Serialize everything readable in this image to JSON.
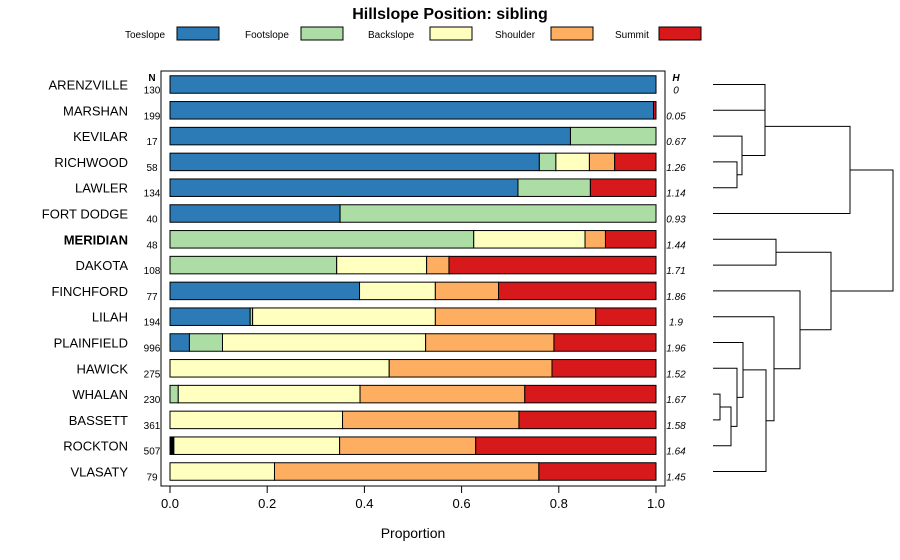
{
  "chart_data": {
    "type": "bar",
    "orientation": "horizontal",
    "stacked": true,
    "title": "Hillslope Position: sibling",
    "xlabel": "Proportion",
    "xlim": [
      0,
      1
    ],
    "xticks": [
      "0.0",
      "0.2",
      "0.4",
      "0.6",
      "0.8",
      "1.0"
    ],
    "n_header": "N",
    "h_header": "H",
    "legend": [
      {
        "name": "Toeslope",
        "color": "#2c7bb6"
      },
      {
        "name": "Footslope",
        "color": "#abdda4"
      },
      {
        "name": "Backslope",
        "color": "#ffffbf"
      },
      {
        "name": "Shoulder",
        "color": "#fdae61"
      },
      {
        "name": "Summit",
        "color": "#d7191c"
      }
    ],
    "rows": [
      {
        "label": "ARENZVILLE",
        "n": "130",
        "h": "0",
        "bold": false,
        "lead": 0,
        "values": [
          1.0,
          0,
          0,
          0,
          0
        ]
      },
      {
        "label": "MARSHAN",
        "n": "199",
        "h": "0.05",
        "bold": false,
        "lead": 0,
        "values": [
          0.995,
          0,
          0,
          0,
          0.005
        ]
      },
      {
        "label": "KEVILAR",
        "n": "17",
        "h": "0.67",
        "bold": false,
        "lead": 0,
        "values": [
          0.824,
          0.176,
          0,
          0,
          0
        ]
      },
      {
        "label": "RICHWOOD",
        "n": "58",
        "h": "1.26",
        "bold": false,
        "lead": 0,
        "values": [
          0.76,
          0.034,
          0.069,
          0.052,
          0.085
        ]
      },
      {
        "label": "LAWLER",
        "n": "134",
        "h": "1.14",
        "bold": false,
        "lead": 0,
        "values": [
          0.716,
          0.149,
          0,
          0,
          0.135
        ]
      },
      {
        "label": "FORT DODGE",
        "n": "40",
        "h": "0.93",
        "bold": false,
        "lead": 0,
        "values": [
          0.35,
          0.65,
          0,
          0,
          0
        ]
      },
      {
        "label": "MERIDIAN",
        "n": "48",
        "h": "1.44",
        "bold": true,
        "lead": 0,
        "values": [
          0,
          0.625,
          0.229,
          0.042,
          0.104
        ]
      },
      {
        "label": "DAKOTA",
        "n": "108",
        "h": "1.71",
        "bold": false,
        "lead": 0,
        "values": [
          0,
          0.343,
          0.185,
          0.046,
          0.426
        ]
      },
      {
        "label": "FINCHFORD",
        "n": "77",
        "h": "1.86",
        "bold": false,
        "lead": 0,
        "values": [
          0.39,
          0,
          0.156,
          0.13,
          0.324
        ]
      },
      {
        "label": "LILAH",
        "n": "194",
        "h": "1.9",
        "bold": false,
        "lead": 0,
        "values": [
          0.165,
          0.005,
          0.376,
          0.33,
          0.124
        ]
      },
      {
        "label": "PLAINFIELD",
        "n": "996",
        "h": "1.96",
        "bold": false,
        "lead": 0,
        "values": [
          0.04,
          0.068,
          0.418,
          0.264,
          0.21
        ]
      },
      {
        "label": "HAWICK",
        "n": "275",
        "h": "1.52",
        "bold": false,
        "lead": 0,
        "values": [
          0,
          0,
          0.451,
          0.335,
          0.214
        ]
      },
      {
        "label": "WHALAN",
        "n": "230",
        "h": "1.67",
        "bold": false,
        "lead": 0,
        "values": [
          0,
          0.017,
          0.374,
          0.339,
          0.27
        ]
      },
      {
        "label": "BASSETT",
        "n": "361",
        "h": "1.58",
        "bold": false,
        "lead": 0,
        "values": [
          0,
          0,
          0.355,
          0.363,
          0.282
        ]
      },
      {
        "label": "ROCKTON",
        "n": "507",
        "h": "1.64",
        "bold": false,
        "lead": 0.008,
        "values": [
          0,
          0,
          0.341,
          0.28,
          0.371
        ]
      },
      {
        "label": "VLASATY",
        "n": "79",
        "h": "1.45",
        "bold": false,
        "lead": 0,
        "values": [
          0,
          0,
          0.215,
          0.544,
          0.241
        ]
      }
    ]
  }
}
